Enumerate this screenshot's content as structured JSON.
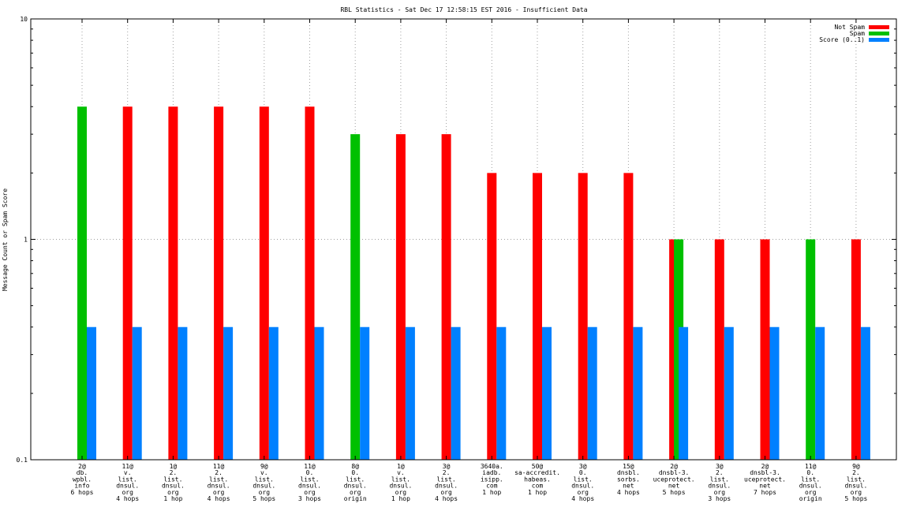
{
  "chart_data": {
    "type": "bar",
    "title": "RBL Statistics - Sat Dec 17 12:58:15 EST 2016 - Insufficient Data",
    "xlabel": "",
    "ylabel": "Message Count or Spam Score",
    "yscale": "log",
    "ylim": [
      0.1,
      10
    ],
    "yticks": [
      "0.1",
      "1",
      "10"
    ],
    "grid": true,
    "legend_position": "top-right",
    "categories": [
      [
        "2@",
        "db.",
        "wpbl.",
        "info",
        "6 hops"
      ],
      [
        "11@",
        "v.",
        "list.",
        "dnsul.",
        "org",
        "4 hops"
      ],
      [
        "1@",
        "2.",
        "list.",
        "dnsul.",
        "org",
        "1 hop"
      ],
      [
        "11@",
        "2.",
        "list.",
        "dnsul.",
        "org",
        "4 hops"
      ],
      [
        "9@",
        "v.",
        "list.",
        "dnsul.",
        "org",
        "5 hops"
      ],
      [
        "11@",
        "0.",
        "list.",
        "dnsul.",
        "org",
        "3 hops"
      ],
      [
        "8@",
        "0.",
        "list.",
        "dnsul.",
        "org",
        "origin"
      ],
      [
        "1@",
        "v.",
        "list.",
        "dnsul.",
        "org",
        "1 hop"
      ],
      [
        "3@",
        "2.",
        "list.",
        "dnsul.",
        "org",
        "4 hops"
      ],
      [
        "3640a.",
        "iadb.",
        "isipp.",
        "com",
        "1 hop"
      ],
      [
        "50@",
        "sa-accredit.",
        "habeas.",
        "com",
        "1 hop"
      ],
      [
        "3@",
        "0.",
        "list.",
        "dnsul.",
        "org",
        "4 hops"
      ],
      [
        "15@",
        "dnsbl.",
        "sorbs.",
        "net",
        "4 hops"
      ],
      [
        "2@",
        "dnsbl-3.",
        "uceprotect.",
        "net",
        "5 hops"
      ],
      [
        "3@",
        "2.",
        "list.",
        "dnsul.",
        "org",
        "3 hops"
      ],
      [
        "2@",
        "dnsbl-3.",
        "uceprotect.",
        "net",
        "7 hops"
      ],
      [
        "11@",
        "0.",
        "list.",
        "dnsul.",
        "org",
        "origin"
      ],
      [
        "9@",
        "2.",
        "list.",
        "dnsul.",
        "org",
        "5 hops"
      ]
    ],
    "series": [
      {
        "name": "Not Spam",
        "color": "#ff0000",
        "values": [
          null,
          4,
          4,
          4,
          4,
          4,
          null,
          3,
          3,
          2,
          2,
          2,
          2,
          1,
          1,
          1,
          null,
          1
        ]
      },
      {
        "name": "Spam",
        "color": "#00c000",
        "values": [
          4,
          null,
          null,
          null,
          null,
          null,
          3,
          null,
          null,
          null,
          null,
          null,
          null,
          1,
          null,
          null,
          1,
          null
        ]
      },
      {
        "name": "Score (0..1)",
        "color": "#0080ff",
        "values": [
          0.4,
          0.4,
          0.4,
          0.4,
          0.4,
          0.4,
          0.4,
          0.4,
          0.4,
          0.4,
          0.4,
          0.4,
          0.4,
          0.4,
          0.4,
          0.4,
          0.4,
          0.4
        ]
      }
    ]
  }
}
